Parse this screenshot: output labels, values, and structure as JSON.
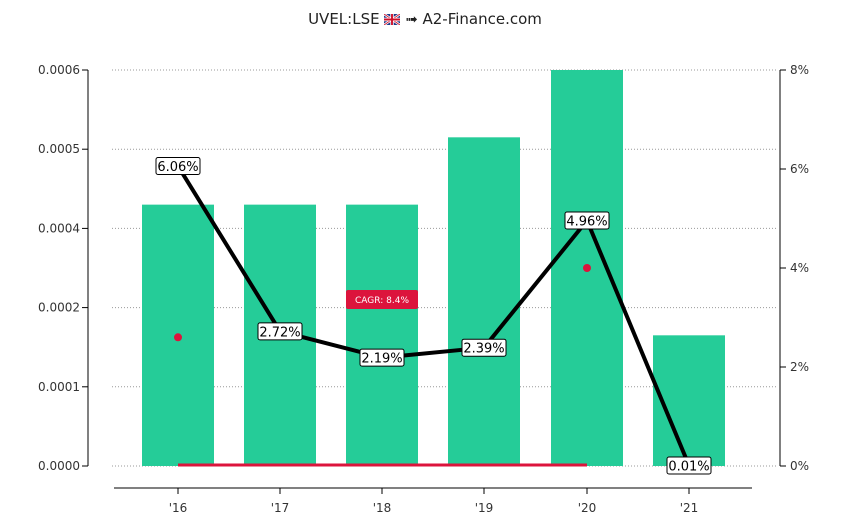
{
  "header": {
    "ticker": "UVEL:LSE",
    "flag_icon": "uk-flag-icon",
    "arrow": "➟",
    "site": "A2-Finance.com"
  },
  "chart_data": {
    "type": "bar",
    "categories": [
      "'16",
      "'17",
      "'18",
      "'19",
      "'20",
      "'21"
    ],
    "series": [
      {
        "axis": "left",
        "type": "bar",
        "values": [
          0.00043,
          0.00043,
          0.00043,
          0.000515,
          0.0006,
          0.000165
        ],
        "color": "#25cc98"
      },
      {
        "axis": "right",
        "type": "line",
        "values": [
          6.06,
          2.72,
          2.19,
          2.39,
          4.96,
          0.01
        ],
        "labels": [
          "6.06%",
          "2.72%",
          "2.19%",
          "2.39%",
          "4.96%",
          "0.01%"
        ],
        "color": "#000000"
      }
    ],
    "left_axis": {
      "ticks": [
        {
          "value": 0,
          "label": "0.0000"
        },
        {
          "value": 0.0001,
          "label": "0.0001"
        },
        {
          "value": 0.0002,
          "label": "0.0002"
        },
        {
          "value": 0.0004,
          "label": "0.0004"
        },
        {
          "value": 0.0005,
          "label": "0.0005"
        },
        {
          "value": 0.0006,
          "label": "0.0006"
        }
      ]
    },
    "right_axis": {
      "ylim": [
        0,
        8
      ],
      "ticks": [
        {
          "value": 0,
          "label": "0%"
        },
        {
          "value": 2,
          "label": "2%"
        },
        {
          "value": 4,
          "label": "4%"
        },
        {
          "value": 6,
          "label": "6%"
        },
        {
          "value": 8,
          "label": "8%"
        }
      ]
    },
    "cagr": {
      "label": "CAGR: 8.4%",
      "color": "#dc143c",
      "from_category": "'16",
      "to_category": "'20",
      "start_value": 0.0,
      "dot_values": [
        2.6,
        4.0
      ]
    },
    "grid": true
  }
}
